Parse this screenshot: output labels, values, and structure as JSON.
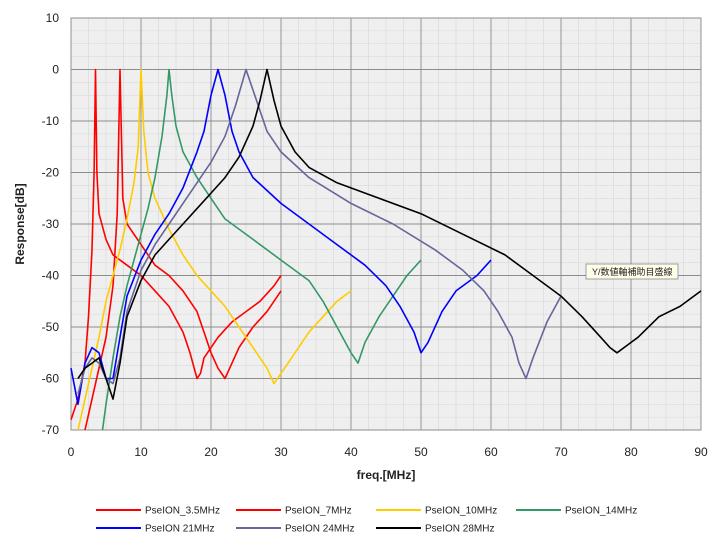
{
  "chart_data": {
    "type": "line",
    "xlabel": "freq.[MHz]",
    "ylabel": "Response[dB]",
    "xlim": [
      0,
      90
    ],
    "ylim": [
      -70,
      10
    ],
    "xticks": [
      0,
      10,
      20,
      30,
      40,
      50,
      60,
      70,
      80,
      90
    ],
    "yticks": [
      10,
      0,
      -10,
      -20,
      -30,
      -40,
      -50,
      -60,
      -70
    ],
    "grid": true,
    "legend_position": "bottom",
    "annotation": "Y/数値軸補助目盛線",
    "series": [
      {
        "name": "PseION_3.5MHz",
        "color": "#ff0000",
        "points": [
          [
            0,
            -68
          ],
          [
            1,
            -64
          ],
          [
            2,
            -57
          ],
          [
            2.5,
            -48
          ],
          [
            3,
            -35
          ],
          [
            3.3,
            -20
          ],
          [
            3.5,
            0
          ],
          [
            3.7,
            -20
          ],
          [
            4,
            -28
          ],
          [
            5,
            -33
          ],
          [
            6,
            -36
          ],
          [
            8,
            -38
          ],
          [
            10,
            -40
          ],
          [
            12,
            -43
          ],
          [
            14,
            -46
          ],
          [
            16,
            -51
          ],
          [
            17,
            -55
          ],
          [
            18,
            -60
          ],
          [
            18.5,
            -59
          ],
          [
            19,
            -56
          ],
          [
            21,
            -52
          ],
          [
            23,
            -49
          ],
          [
            25,
            -47
          ],
          [
            27,
            -45
          ],
          [
            29,
            -42
          ],
          [
            30,
            -40
          ]
        ]
      },
      {
        "name": "PseION_7MHz",
        "color": "#ff0000",
        "points": [
          [
            2,
            -70
          ],
          [
            3,
            -64
          ],
          [
            4,
            -58
          ],
          [
            5,
            -52
          ],
          [
            6,
            -42
          ],
          [
            6.6,
            -28
          ],
          [
            7,
            0
          ],
          [
            7.4,
            -25
          ],
          [
            8,
            -30
          ],
          [
            10,
            -34
          ],
          [
            12,
            -38
          ],
          [
            14,
            -40
          ],
          [
            16,
            -43
          ],
          [
            18,
            -47
          ],
          [
            19,
            -51
          ],
          [
            20,
            -55
          ],
          [
            21,
            -58
          ],
          [
            22,
            -60
          ],
          [
            23,
            -57
          ],
          [
            24,
            -54
          ],
          [
            26,
            -50
          ],
          [
            28,
            -47
          ],
          [
            30,
            -43
          ]
        ]
      },
      {
        "name": "PseION_10MHz",
        "color": "#ffcc00",
        "points": [
          [
            1,
            -70
          ],
          [
            2,
            -64
          ],
          [
            3,
            -58
          ],
          [
            4,
            -52
          ],
          [
            5,
            -45
          ],
          [
            6,
            -40
          ],
          [
            7,
            -35
          ],
          [
            8,
            -29
          ],
          [
            9,
            -22
          ],
          [
            9.6,
            -15
          ],
          [
            10,
            0
          ],
          [
            10.4,
            -12
          ],
          [
            11,
            -20
          ],
          [
            12,
            -25
          ],
          [
            14,
            -31
          ],
          [
            16,
            -36
          ],
          [
            18,
            -40
          ],
          [
            20,
            -43
          ],
          [
            22,
            -46
          ],
          [
            24,
            -50
          ],
          [
            26,
            -54
          ],
          [
            28,
            -58
          ],
          [
            29,
            -61
          ],
          [
            30,
            -59
          ],
          [
            32,
            -55
          ],
          [
            34,
            -51
          ],
          [
            36,
            -48
          ],
          [
            38,
            -45
          ],
          [
            40,
            -43
          ]
        ]
      },
      {
        "name": "PseION_14MHz",
        "color": "#339966",
        "points": [
          [
            4.5,
            -70
          ],
          [
            5,
            -65
          ],
          [
            6,
            -56
          ],
          [
            7,
            -48
          ],
          [
            8,
            -42
          ],
          [
            9,
            -37
          ],
          [
            10,
            -32
          ],
          [
            11,
            -27
          ],
          [
            12,
            -21
          ],
          [
            13,
            -13
          ],
          [
            13.7,
            -5
          ],
          [
            14,
            0
          ],
          [
            14.4,
            -5
          ],
          [
            15,
            -11
          ],
          [
            16,
            -16
          ],
          [
            18,
            -21
          ],
          [
            20,
            -25
          ],
          [
            22,
            -29
          ],
          [
            26,
            -33
          ],
          [
            30,
            -37
          ],
          [
            34,
            -41
          ],
          [
            36,
            -45
          ],
          [
            38,
            -50
          ],
          [
            40,
            -55
          ],
          [
            41,
            -57
          ],
          [
            42,
            -53
          ],
          [
            44,
            -48
          ],
          [
            46,
            -44
          ],
          [
            48,
            -40
          ],
          [
            50,
            -37
          ]
        ]
      },
      {
        "name": "PseION 21MHz",
        "color": "#0000ff",
        "points": [
          [
            0,
            -58
          ],
          [
            1,
            -65
          ],
          [
            2,
            -57
          ],
          [
            3,
            -54
          ],
          [
            4,
            -55
          ],
          [
            5,
            -60
          ],
          [
            6,
            -60
          ],
          [
            7,
            -52
          ],
          [
            8,
            -44
          ],
          [
            10,
            -37
          ],
          [
            12,
            -32
          ],
          [
            14,
            -28
          ],
          [
            16,
            -23
          ],
          [
            18,
            -16
          ],
          [
            19,
            -12
          ],
          [
            20,
            -5
          ],
          [
            21,
            0
          ],
          [
            22,
            -5
          ],
          [
            23,
            -12
          ],
          [
            24,
            -16
          ],
          [
            26,
            -21
          ],
          [
            30,
            -26
          ],
          [
            34,
            -30
          ],
          [
            38,
            -34
          ],
          [
            42,
            -38
          ],
          [
            45,
            -42
          ],
          [
            47,
            -46
          ],
          [
            49,
            -51
          ],
          [
            50,
            -55
          ],
          [
            51,
            -53
          ],
          [
            53,
            -47
          ],
          [
            55,
            -43
          ],
          [
            58,
            -40
          ],
          [
            60,
            -37
          ]
        ]
      },
      {
        "name": "PseION 24MHz",
        "color": "#666699",
        "points": [
          [
            1,
            -63
          ],
          [
            2,
            -58
          ],
          [
            3,
            -56
          ],
          [
            4,
            -57
          ],
          [
            5,
            -60
          ],
          [
            6,
            -61
          ],
          [
            7,
            -56
          ],
          [
            8,
            -47
          ],
          [
            10,
            -39
          ],
          [
            12,
            -34
          ],
          [
            14,
            -30
          ],
          [
            16,
            -26
          ],
          [
            18,
            -22
          ],
          [
            20,
            -18
          ],
          [
            22,
            -13
          ],
          [
            23.5,
            -7
          ],
          [
            25,
            0
          ],
          [
            26.5,
            -6
          ],
          [
            28,
            -12
          ],
          [
            30,
            -16
          ],
          [
            34,
            -21
          ],
          [
            40,
            -26
          ],
          [
            46,
            -30
          ],
          [
            52,
            -35
          ],
          [
            56,
            -39
          ],
          [
            59,
            -43
          ],
          [
            61,
            -47
          ],
          [
            63,
            -52
          ],
          [
            64,
            -57
          ],
          [
            65,
            -60
          ],
          [
            66,
            -56
          ],
          [
            68,
            -49
          ],
          [
            70,
            -44
          ]
        ]
      },
      {
        "name": "PseION 28MHz",
        "color": "#000000",
        "points": [
          [
            1,
            -60
          ],
          [
            2,
            -58
          ],
          [
            3,
            -57
          ],
          [
            4,
            -56
          ],
          [
            5,
            -60
          ],
          [
            6,
            -64
          ],
          [
            7,
            -57
          ],
          [
            8,
            -48
          ],
          [
            10,
            -41
          ],
          [
            12,
            -36
          ],
          [
            14,
            -33
          ],
          [
            16,
            -30
          ],
          [
            18,
            -27
          ],
          [
            20,
            -24
          ],
          [
            22,
            -21
          ],
          [
            24,
            -17
          ],
          [
            26,
            -11
          ],
          [
            27,
            -6
          ],
          [
            28,
            0
          ],
          [
            29,
            -6
          ],
          [
            30,
            -11
          ],
          [
            32,
            -16
          ],
          [
            34,
            -19
          ],
          [
            38,
            -22
          ],
          [
            44,
            -25
          ],
          [
            50,
            -28
          ],
          [
            56,
            -32
          ],
          [
            62,
            -36
          ],
          [
            66,
            -40
          ],
          [
            70,
            -44
          ],
          [
            73,
            -48
          ],
          [
            75,
            -51
          ],
          [
            77,
            -54
          ],
          [
            78,
            -55
          ],
          [
            79,
            -54
          ],
          [
            81,
            -52
          ],
          [
            84,
            -48
          ],
          [
            87,
            -46
          ],
          [
            90,
            -43
          ]
        ]
      }
    ]
  }
}
